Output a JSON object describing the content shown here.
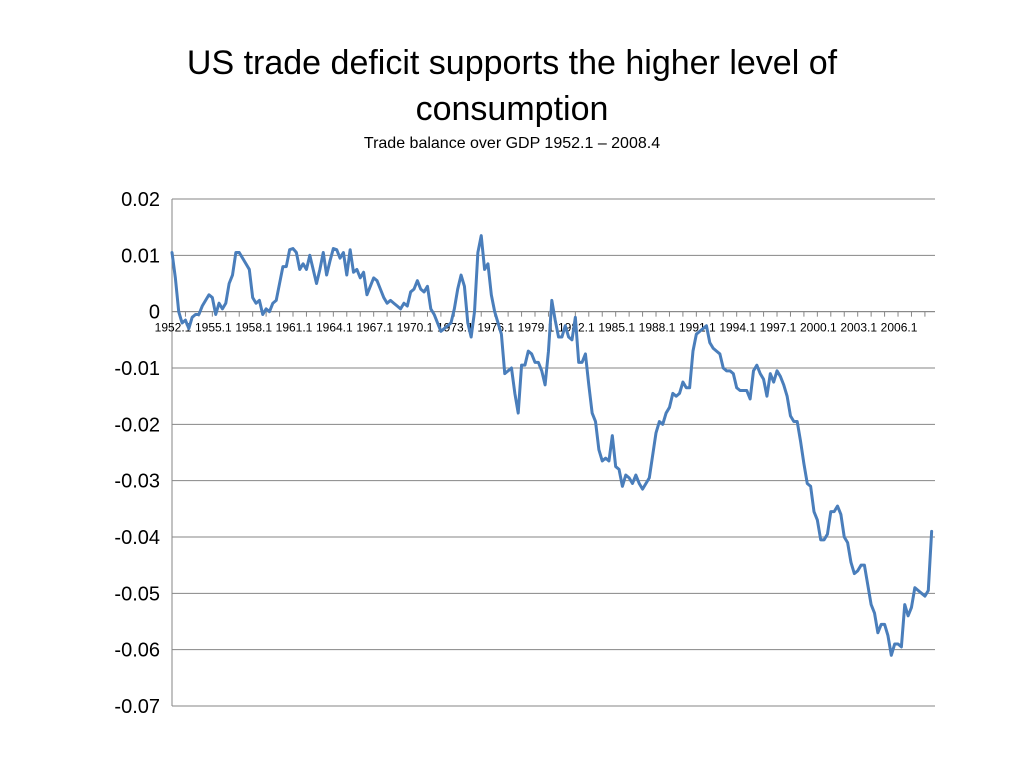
{
  "slide": {
    "title": "US trade deficit supports the higher level of consumption",
    "subtitle": "Trade balance over GDP 1952.1 – 2008.4"
  },
  "chart_data": {
    "type": "line",
    "title": "",
    "xlabel": "",
    "ylabel": "",
    "ylim": [
      -0.07,
      0.02
    ],
    "yticks": [
      "0.02",
      "0.01",
      "0",
      "-0.01",
      "-0.02",
      "-0.03",
      "-0.04",
      "-0.05",
      "-0.06",
      "-0.07"
    ],
    "ytick_values": [
      0.02,
      0.01,
      0,
      -0.01,
      -0.02,
      -0.03,
      -0.04,
      -0.05,
      -0.06,
      -0.07
    ],
    "xticks": [
      "1952.1",
      "1955.1",
      "1958.1",
      "1961.1",
      "1964.1",
      "1967.1",
      "1970.1",
      "1973.1",
      "1976.1",
      "1979.1",
      "1982.1",
      "1985.1",
      "1988.1",
      "1991.1",
      "1994.1",
      "1997.1",
      "2000.1",
      "2003.1",
      "2006.1"
    ],
    "xtick_years": [
      1952,
      1955,
      1958,
      1961,
      1964,
      1967,
      1970,
      1973,
      1976,
      1979,
      1982,
      1985,
      1988,
      1991,
      1994,
      1997,
      2000,
      2003,
      2006
    ],
    "grid": true,
    "legend": "none",
    "x_range": [
      1952.0,
      2008.75
    ],
    "series": [
      {
        "color": "#4a7ebb",
        "points": [
          [
            1952.0,
            0.0105
          ],
          [
            1952.25,
            0.006
          ],
          [
            1952.5,
            0.0
          ],
          [
            1952.75,
            -0.002
          ],
          [
            1953.0,
            -0.0015
          ],
          [
            1953.25,
            -0.003
          ],
          [
            1953.5,
            -0.001
          ],
          [
            1953.75,
            -0.0005
          ],
          [
            1954.0,
            -0.0005
          ],
          [
            1954.25,
            0.001
          ],
          [
            1954.5,
            0.002
          ],
          [
            1954.75,
            0.003
          ],
          [
            1955.0,
            0.0025
          ],
          [
            1955.25,
            -0.0005
          ],
          [
            1955.5,
            0.0015
          ],
          [
            1955.75,
            0.0005
          ],
          [
            1956.0,
            0.0015
          ],
          [
            1956.25,
            0.005
          ],
          [
            1956.5,
            0.0065
          ],
          [
            1956.75,
            0.0105
          ],
          [
            1957.0,
            0.0105
          ],
          [
            1957.25,
            0.0095
          ],
          [
            1957.5,
            0.0085
          ],
          [
            1957.75,
            0.0075
          ],
          [
            1958.0,
            0.0025
          ],
          [
            1958.25,
            0.0015
          ],
          [
            1958.5,
            0.002
          ],
          [
            1958.75,
            -0.0005
          ],
          [
            1959.0,
            0.0005
          ],
          [
            1959.25,
            0.0
          ],
          [
            1959.5,
            0.0015
          ],
          [
            1959.75,
            0.002
          ],
          [
            1960.0,
            0.005
          ],
          [
            1960.25,
            0.008
          ],
          [
            1960.5,
            0.008
          ],
          [
            1960.75,
            0.011
          ],
          [
            1961.0,
            0.0112
          ],
          [
            1961.25,
            0.0105
          ],
          [
            1961.5,
            0.0075
          ],
          [
            1961.75,
            0.0085
          ],
          [
            1962.0,
            0.0075
          ],
          [
            1962.25,
            0.01
          ],
          [
            1962.5,
            0.0075
          ],
          [
            1962.75,
            0.005
          ],
          [
            1963.0,
            0.0075
          ],
          [
            1963.25,
            0.0105
          ],
          [
            1963.5,
            0.0065
          ],
          [
            1963.75,
            0.009
          ],
          [
            1964.0,
            0.0112
          ],
          [
            1964.25,
            0.011
          ],
          [
            1964.5,
            0.0095
          ],
          [
            1964.75,
            0.0105
          ],
          [
            1965.0,
            0.0065
          ],
          [
            1965.25,
            0.011
          ],
          [
            1965.5,
            0.007
          ],
          [
            1965.75,
            0.0075
          ],
          [
            1966.0,
            0.006
          ],
          [
            1966.25,
            0.007
          ],
          [
            1966.5,
            0.003
          ],
          [
            1966.75,
            0.0045
          ],
          [
            1967.0,
            0.006
          ],
          [
            1967.25,
            0.0055
          ],
          [
            1967.5,
            0.004
          ],
          [
            1967.75,
            0.0025
          ],
          [
            1968.0,
            0.0015
          ],
          [
            1968.25,
            0.002
          ],
          [
            1968.5,
            0.0015
          ],
          [
            1968.75,
            0.001
          ],
          [
            1969.0,
            0.0005
          ],
          [
            1969.25,
            0.0015
          ],
          [
            1969.5,
            0.001
          ],
          [
            1969.75,
            0.0035
          ],
          [
            1970.0,
            0.004
          ],
          [
            1970.25,
            0.0055
          ],
          [
            1970.5,
            0.004
          ],
          [
            1970.75,
            0.0035
          ],
          [
            1971.0,
            0.0045
          ],
          [
            1971.25,
            0.0005
          ],
          [
            1971.5,
            -0.0005
          ],
          [
            1971.75,
            -0.002
          ],
          [
            1972.0,
            -0.0035
          ],
          [
            1972.25,
            -0.003
          ],
          [
            1972.5,
            -0.0025
          ],
          [
            1972.75,
            -0.002
          ],
          [
            1973.0,
            0.0005
          ],
          [
            1973.25,
            0.004
          ],
          [
            1973.5,
            0.0065
          ],
          [
            1973.75,
            0.0045
          ],
          [
            1974.0,
            -0.002
          ],
          [
            1974.25,
            -0.0045
          ],
          [
            1974.5,
            0.0
          ],
          [
            1974.75,
            0.0105
          ],
          [
            1975.0,
            0.0135
          ],
          [
            1975.25,
            0.0075
          ],
          [
            1975.5,
            0.0085
          ],
          [
            1975.75,
            0.003
          ],
          [
            1976.0,
            0.0
          ],
          [
            1976.25,
            -0.002
          ],
          [
            1976.5,
            -0.004
          ],
          [
            1976.75,
            -0.011
          ],
          [
            1977.0,
            -0.0105
          ],
          [
            1977.25,
            -0.01
          ],
          [
            1977.5,
            -0.0145
          ],
          [
            1977.75,
            -0.018
          ],
          [
            1978.0,
            -0.0095
          ],
          [
            1978.25,
            -0.0095
          ],
          [
            1978.5,
            -0.007
          ],
          [
            1978.75,
            -0.0075
          ],
          [
            1979.0,
            -0.009
          ],
          [
            1979.25,
            -0.009
          ],
          [
            1979.5,
            -0.0105
          ],
          [
            1979.75,
            -0.013
          ],
          [
            1980.0,
            -0.007
          ],
          [
            1980.25,
            0.002
          ],
          [
            1980.5,
            -0.0015
          ],
          [
            1980.75,
            -0.0045
          ],
          [
            1981.0,
            -0.0045
          ],
          [
            1981.25,
            -0.0025
          ],
          [
            1981.5,
            -0.0045
          ],
          [
            1981.75,
            -0.005
          ],
          [
            1982.0,
            -0.001
          ],
          [
            1982.25,
            -0.009
          ],
          [
            1982.5,
            -0.009
          ],
          [
            1982.75,
            -0.0075
          ],
          [
            1983.0,
            -0.013
          ],
          [
            1983.25,
            -0.018
          ],
          [
            1983.5,
            -0.0195
          ],
          [
            1983.75,
            -0.0245
          ],
          [
            1984.0,
            -0.0265
          ],
          [
            1984.25,
            -0.026
          ],
          [
            1984.5,
            -0.0265
          ],
          [
            1984.75,
            -0.022
          ],
          [
            1985.0,
            -0.0275
          ],
          [
            1985.25,
            -0.028
          ],
          [
            1985.5,
            -0.031
          ],
          [
            1985.75,
            -0.029
          ],
          [
            1986.0,
            -0.0295
          ],
          [
            1986.25,
            -0.0305
          ],
          [
            1986.5,
            -0.029
          ],
          [
            1986.75,
            -0.0305
          ],
          [
            1987.0,
            -0.0315
          ],
          [
            1987.25,
            -0.0305
          ],
          [
            1987.5,
            -0.0295
          ],
          [
            1987.75,
            -0.0255
          ],
          [
            1988.0,
            -0.0215
          ],
          [
            1988.25,
            -0.0195
          ],
          [
            1988.5,
            -0.02
          ],
          [
            1988.75,
            -0.018
          ],
          [
            1989.0,
            -0.017
          ],
          [
            1989.25,
            -0.0145
          ],
          [
            1989.5,
            -0.015
          ],
          [
            1989.75,
            -0.0145
          ],
          [
            1990.0,
            -0.0125
          ],
          [
            1990.25,
            -0.0135
          ],
          [
            1990.5,
            -0.0135
          ],
          [
            1990.75,
            -0.007
          ],
          [
            1991.0,
            -0.004
          ],
          [
            1991.25,
            -0.0035
          ],
          [
            1991.5,
            -0.003
          ],
          [
            1991.75,
            -0.0025
          ],
          [
            1992.0,
            -0.0055
          ],
          [
            1992.25,
            -0.0065
          ],
          [
            1992.5,
            -0.007
          ],
          [
            1992.75,
            -0.0075
          ],
          [
            1993.0,
            -0.01
          ],
          [
            1993.25,
            -0.0105
          ],
          [
            1993.5,
            -0.0105
          ],
          [
            1993.75,
            -0.011
          ],
          [
            1994.0,
            -0.0135
          ],
          [
            1994.25,
            -0.014
          ],
          [
            1994.5,
            -0.014
          ],
          [
            1994.75,
            -0.014
          ],
          [
            1995.0,
            -0.0155
          ],
          [
            1995.25,
            -0.0105
          ],
          [
            1995.5,
            -0.0095
          ],
          [
            1995.75,
            -0.011
          ],
          [
            1996.0,
            -0.012
          ],
          [
            1996.25,
            -0.015
          ],
          [
            1996.5,
            -0.011
          ],
          [
            1996.75,
            -0.0125
          ],
          [
            1997.0,
            -0.0105
          ],
          [
            1997.25,
            -0.0115
          ],
          [
            1997.5,
            -0.013
          ],
          [
            1997.75,
            -0.015
          ],
          [
            1998.0,
            -0.0185
          ],
          [
            1998.25,
            -0.0195
          ],
          [
            1998.5,
            -0.0195
          ],
          [
            1998.75,
            -0.023
          ],
          [
            1999.0,
            -0.027
          ],
          [
            1999.25,
            -0.0305
          ],
          [
            1999.5,
            -0.031
          ],
          [
            1999.75,
            -0.0355
          ],
          [
            2000.0,
            -0.037
          ],
          [
            2000.25,
            -0.0405
          ],
          [
            2000.5,
            -0.0405
          ],
          [
            2000.75,
            -0.0395
          ],
          [
            2001.0,
            -0.0355
          ],
          [
            2001.25,
            -0.0355
          ],
          [
            2001.5,
            -0.0345
          ],
          [
            2001.75,
            -0.036
          ],
          [
            2002.0,
            -0.04
          ],
          [
            2002.25,
            -0.041
          ],
          [
            2002.5,
            -0.0445
          ],
          [
            2002.75,
            -0.0465
          ],
          [
            2003.0,
            -0.046
          ],
          [
            2003.25,
            -0.045
          ],
          [
            2003.5,
            -0.045
          ],
          [
            2003.75,
            -0.0485
          ],
          [
            2004.0,
            -0.052
          ],
          [
            2004.25,
            -0.0535
          ],
          [
            2004.5,
            -0.057
          ],
          [
            2004.75,
            -0.0555
          ],
          [
            2005.0,
            -0.0555
          ],
          [
            2005.25,
            -0.0575
          ],
          [
            2005.5,
            -0.061
          ],
          [
            2005.75,
            -0.059
          ],
          [
            2006.0,
            -0.059
          ],
          [
            2006.25,
            -0.0595
          ],
          [
            2006.5,
            -0.052
          ],
          [
            2006.75,
            -0.054
          ],
          [
            2007.0,
            -0.0525
          ],
          [
            2007.25,
            -0.049
          ],
          [
            2007.5,
            -0.0495
          ],
          [
            2007.75,
            -0.05
          ],
          [
            2008.0,
            -0.0505
          ],
          [
            2008.25,
            -0.0495
          ],
          [
            2008.5,
            -0.039
          ]
        ]
      }
    ]
  }
}
